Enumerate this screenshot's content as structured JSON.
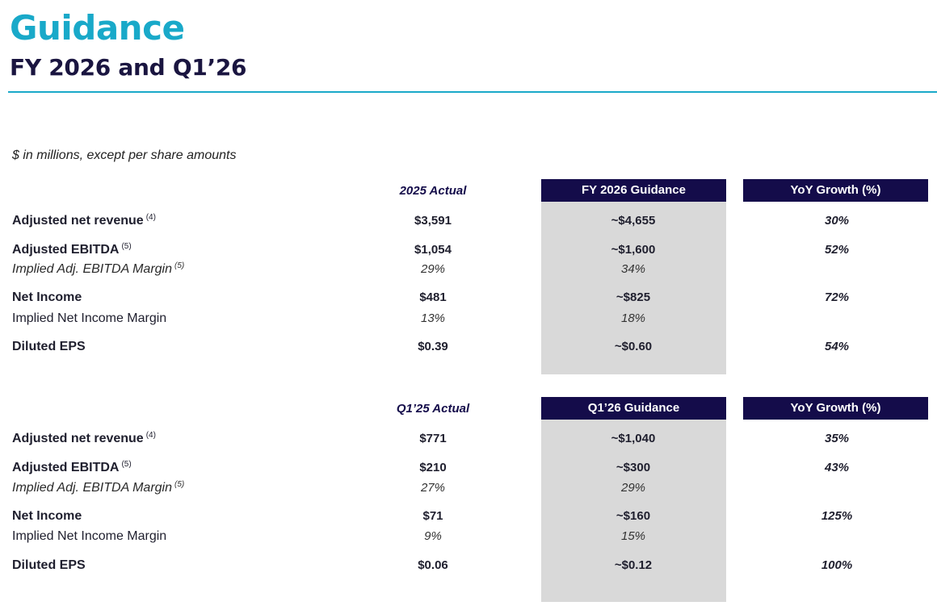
{
  "title": "Guidance",
  "subtitle": "FY 2026 and Q1’26",
  "note": "$ in millions, except per share amounts",
  "fy": {
    "actual_header": "2025 Actual",
    "guidance_header": "FY 2026 Guidance",
    "yoy_header": "YoY Growth (%)",
    "rows": [
      {
        "label": "Adjusted net revenue",
        "sup": "(4)",
        "actual": "$3,591",
        "guidance": "~$4,655",
        "yoy": "30%"
      },
      {
        "label": "Adjusted EBITDA",
        "sup": "(5)",
        "actual": "$1,054",
        "guidance": "~$1,600",
        "yoy": "52%"
      },
      {
        "label": "Implied Adj. EBITDA Margin",
        "sup": "(5)",
        "actual": "29%",
        "guidance": "34%",
        "yoy": ""
      },
      {
        "label": "Net Income",
        "sup": "",
        "actual": "$481",
        "guidance": "~$825",
        "yoy": "72%"
      },
      {
        "label": "Implied Net Income Margin",
        "sup": "",
        "actual": "13%",
        "guidance": "18%",
        "yoy": ""
      },
      {
        "label": "Diluted EPS",
        "sup": "",
        "actual": "$0.39",
        "guidance": "~$0.60",
        "yoy": "54%"
      }
    ]
  },
  "q1": {
    "actual_header": "Q1’25 Actual",
    "guidance_header": "Q1’26 Guidance",
    "yoy_header": "YoY Growth (%)",
    "rows": [
      {
        "label": "Adjusted net revenue",
        "sup": "(4)",
        "actual": "$771",
        "guidance": "~$1,040",
        "yoy": "35%"
      },
      {
        "label": "Adjusted EBITDA",
        "sup": "(5)",
        "actual": "$210",
        "guidance": "~$300",
        "yoy": "43%"
      },
      {
        "label": "Implied Adj. EBITDA Margin",
        "sup": "(5)",
        "actual": "27%",
        "guidance": "29%",
        "yoy": ""
      },
      {
        "label": "Net Income",
        "sup": "",
        "actual": "$71",
        "guidance": "~$160",
        "yoy": "125%"
      },
      {
        "label": "Implied Net Income Margin",
        "sup": "",
        "actual": "9%",
        "guidance": "15%",
        "yoy": ""
      },
      {
        "label": "Diluted EPS",
        "sup": "",
        "actual": "$0.06",
        "guidance": "~$0.12",
        "yoy": "100%"
      }
    ]
  }
}
